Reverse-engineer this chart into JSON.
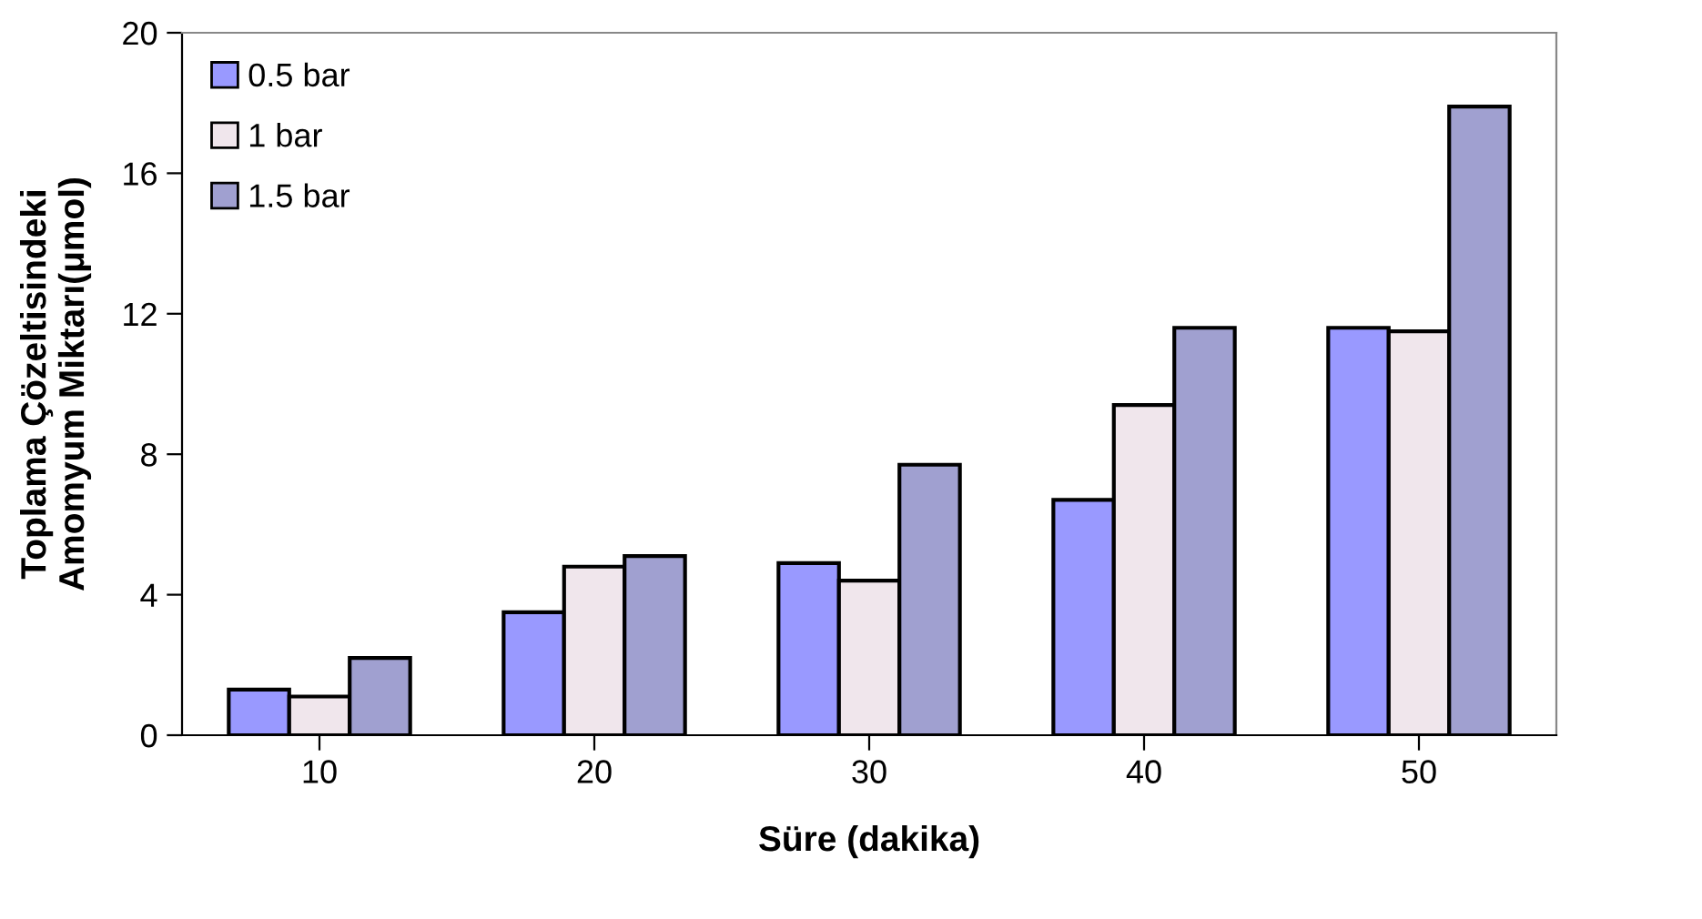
{
  "chart_data": {
    "type": "bar",
    "xlabel": "Süre (dakika)",
    "ylabel": "Toplama Çözeltisindeki\nAmomyum Miktarı(μmol)",
    "categories": [
      "10",
      "20",
      "30",
      "40",
      "50"
    ],
    "series": [
      {
        "name": "0.5 bar",
        "color": "#9999ff",
        "values": [
          1.3,
          3.5,
          4.9,
          6.7,
          11.6
        ]
      },
      {
        "name": "1 bar",
        "color": "#f0e6ec",
        "values": [
          1.1,
          4.8,
          4.4,
          9.4,
          11.5
        ]
      },
      {
        "name": "1.5 bar",
        "color": "#a0a0d0",
        "values": [
          2.2,
          5.1,
          7.7,
          11.6,
          17.9
        ]
      }
    ],
    "ylim": [
      0,
      20
    ],
    "yticks": [
      0,
      4,
      8,
      12,
      16,
      20
    ],
    "grid": false,
    "legend": "top left"
  }
}
